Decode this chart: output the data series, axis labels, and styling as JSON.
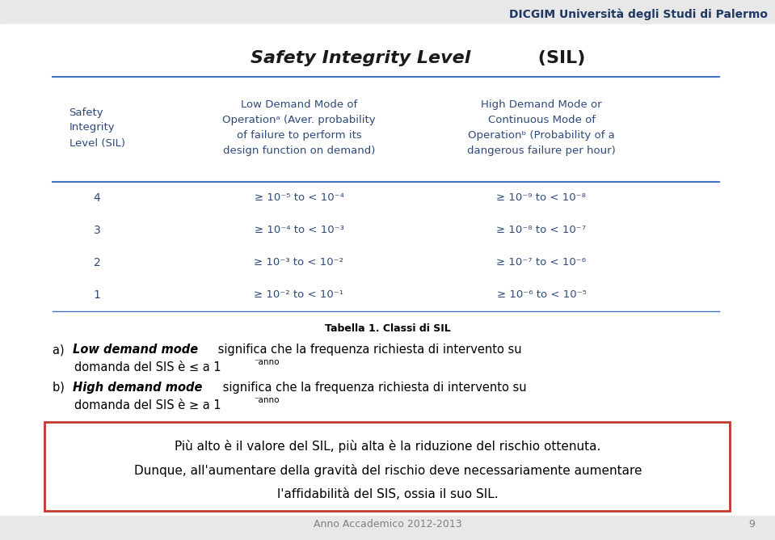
{
  "title_italic": "Safety Integrity Level",
  "title_normal": " (SIL)",
  "header_color": "#1F3864",
  "top_text": "DICGIM Università degli Studi di Palermo",
  "table_caption": "Tabella 1. Classi di SIL",
  "col1_header": "Safety\nIntegrity\nLevel (SIL)",
  "col2_header": "Low Demand Mode of\nOperationᵃ (Aver. probability\nof failure to perform its\ndesign function on demand)",
  "col3_header": "High Demand Mode or\nContinuous Mode of\nOperationᵇ (Probability of a\ndangerous failure per hour)",
  "rows": [
    [
      "4",
      "≥ 10⁻⁵ to < 10⁻⁴",
      "≥ 10⁻⁹ to < 10⁻⁸"
    ],
    [
      "3",
      "≥ 10⁻⁴ to < 10⁻³",
      "≥ 10⁻⁸ to < 10⁻⁷"
    ],
    [
      "2",
      "≥ 10⁻³ to < 10⁻²",
      "≥ 10⁻⁷ to < 10⁻⁶"
    ],
    [
      "1",
      "≥ 10⁻² to < 10⁻¹",
      "≥ 10⁻⁶ to < 10⁻⁵"
    ]
  ],
  "box_line1": "Più alto è il valore del SIL, più alta è la riduzione del rischio ottenuta.",
  "box_line2": "Dunque, all'aumentare della gravità del rischio deve necessariamente aumentare",
  "box_line3": "l'affidabilità del SIS, ossia il suo SIL.",
  "footer": "Anno Accademico 2012-2013",
  "page_number": "9",
  "bg_top_color": "#e8e8e8",
  "bg_main_color": "#ffffff",
  "box_border_color": "#c0392b",
  "line_color": "#4472C4",
  "table_text_color": "#2E4A7A",
  "title_color": "#1a1a1a"
}
